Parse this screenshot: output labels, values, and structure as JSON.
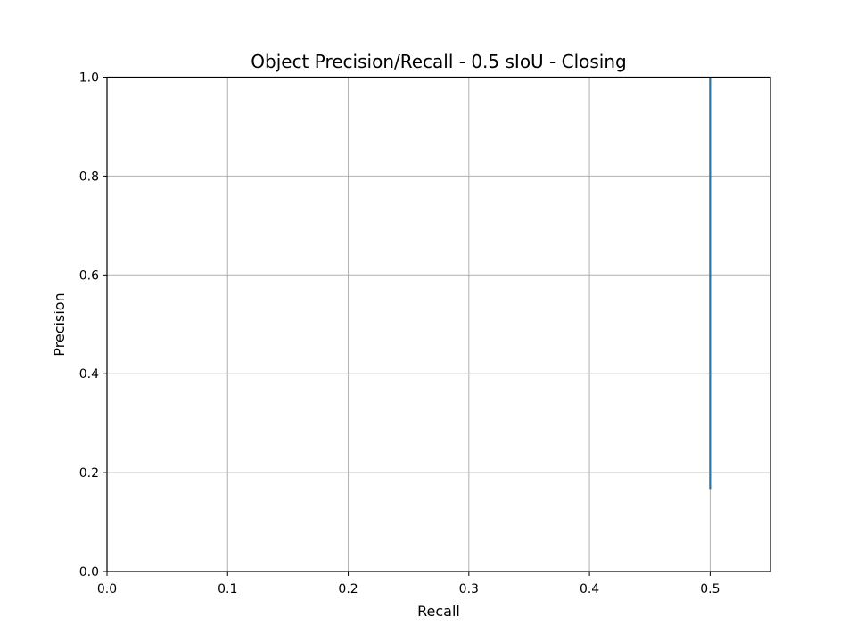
{
  "chart_data": {
    "type": "line",
    "title": "Object Precision/Recall - 0.5 sIoU - Closing",
    "xlabel": "Recall",
    "ylabel": "Precision",
    "xlim": [
      0.0,
      0.55
    ],
    "ylim": [
      0.0,
      1.0
    ],
    "xticks": [
      "0.0",
      "0.1",
      "0.2",
      "0.3",
      "0.4",
      "0.5"
    ],
    "yticks": [
      "0.0",
      "0.2",
      "0.4",
      "0.6",
      "0.8",
      "1.0"
    ],
    "grid": true,
    "series": [
      {
        "color": "#1f77b4",
        "x": [
          0.5,
          0.5
        ],
        "y": [
          0.167,
          1.0
        ]
      }
    ]
  }
}
